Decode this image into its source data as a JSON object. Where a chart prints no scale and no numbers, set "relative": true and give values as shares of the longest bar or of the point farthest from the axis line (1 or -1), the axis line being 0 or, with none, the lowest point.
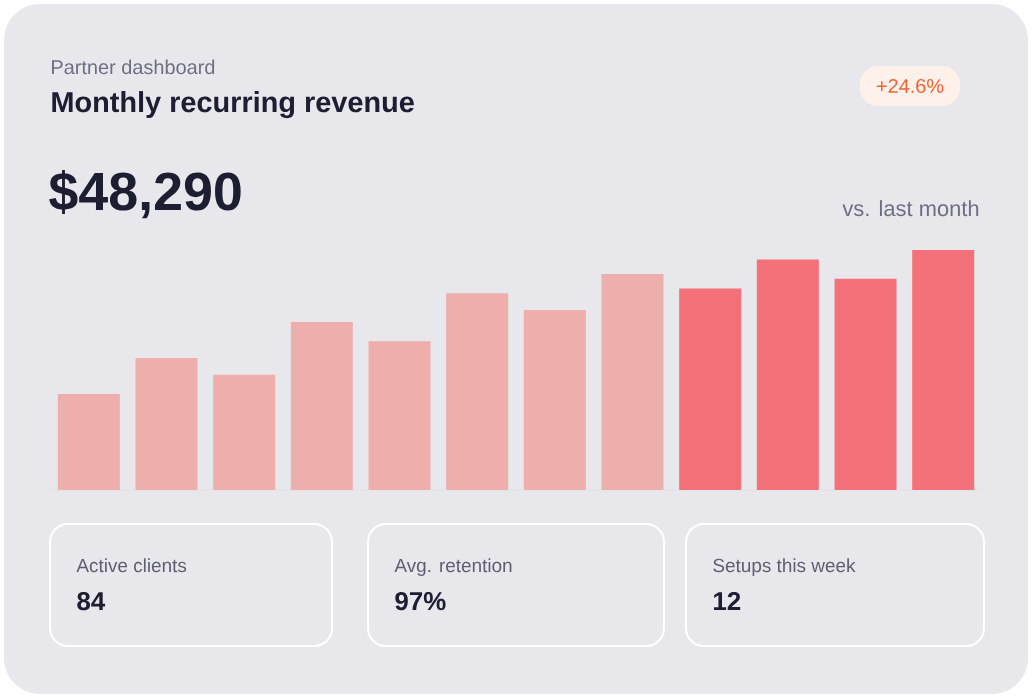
{
  "chart_data": {
    "type": "bar",
    "title": "Monthly recurring revenue",
    "subtitle": "Partner dashboard",
    "categories": [
      null,
      null,
      null,
      null,
      null,
      null,
      null,
      null,
      null,
      null,
      null,
      null
    ],
    "values": [
      0.4,
      0.55,
      0.48,
      0.7,
      0.62,
      0.82,
      0.75,
      0.9,
      0.84,
      0.96,
      0.88,
      1.0
    ],
    "colors": [
      "#eeaeac",
      "#eeaeac",
      "#eeaeac",
      "#eeaeac",
      "#eeaeac",
      "#eeaeac",
      "#eeaeac",
      "#eeaeac",
      "#f5717a",
      "#f5717a",
      "#f5717a",
      "#f5717a"
    ],
    "relative": true,
    "annotations": [
      "$48,290",
      "+24.6%",
      "vs. last month",
      "Active clients",
      "84",
      "Avg. retention",
      "97%",
      "Setups this week",
      "12"
    ]
  }
}
